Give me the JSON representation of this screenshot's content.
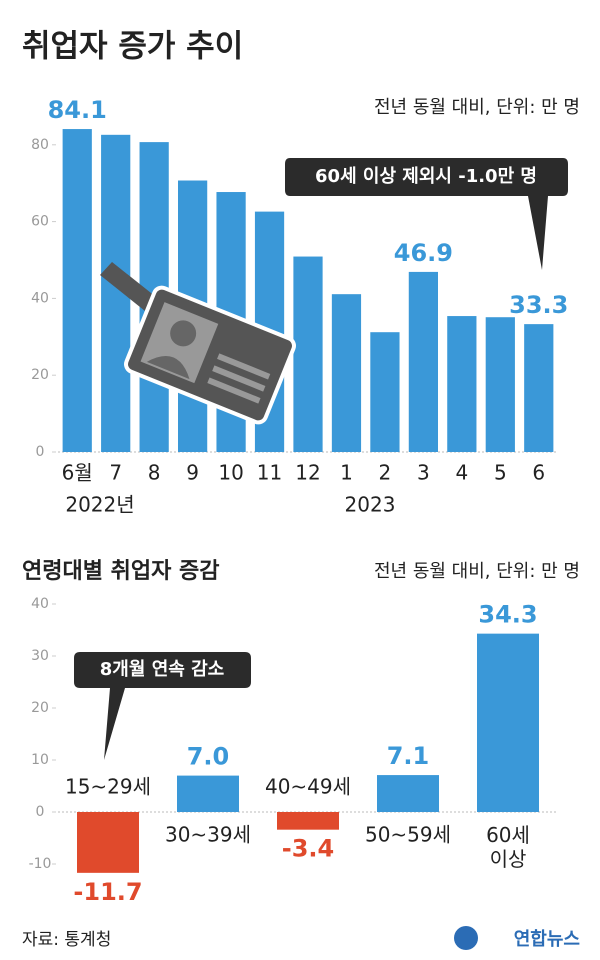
{
  "chart_data": [
    {
      "type": "bar",
      "title": "취업자 증가 추이",
      "subtitle": "전년 동월 대비, 단위: 만 명",
      "categories": [
        "6월",
        "7",
        "8",
        "9",
        "10",
        "11",
        "12",
        "1",
        "2",
        "3",
        "4",
        "5",
        "6"
      ],
      "year_labels": [
        "2022년",
        "2023"
      ],
      "values": [
        84.1,
        82.6,
        80.7,
        70.7,
        67.7,
        62.6,
        50.9,
        41.1,
        31.2,
        46.9,
        35.4,
        35.1,
        33.3
      ],
      "value_labels": [
        "84.1",
        null,
        null,
        null,
        null,
        null,
        null,
        null,
        null,
        "46.9",
        null,
        null,
        "33.3"
      ],
      "color": "#3a98d8",
      "ylim": [
        0,
        90
      ],
      "yticks": [
        0,
        20,
        40,
        60,
        80
      ],
      "annotation": "60세 이상 제외시 -1.0만 명"
    },
    {
      "type": "bar",
      "title": "연령대별 취업자 증감",
      "subtitle": "전년 동월 대비, 단위: 만 명",
      "categories": [
        "15~29세",
        "30~39세",
        "40~49세",
        "50~59세",
        "60세 이상"
      ],
      "values": [
        -11.7,
        7.0,
        -3.4,
        7.1,
        34.3
      ],
      "value_labels": [
        "-11.7",
        "7.0",
        "-3.4",
        "7.1",
        "34.3"
      ],
      "colors": [
        "#e04a2c",
        "#3a98d8",
        "#e04a2c",
        "#3a98d8",
        "#3a98d8"
      ],
      "ylim": [
        -15,
        42
      ],
      "yticks": [
        -10,
        0,
        10,
        20,
        30,
        40
      ],
      "annotation": "8개월 연속 감소"
    }
  ],
  "source": "자료: 통계청",
  "logo": "연합뉴스"
}
